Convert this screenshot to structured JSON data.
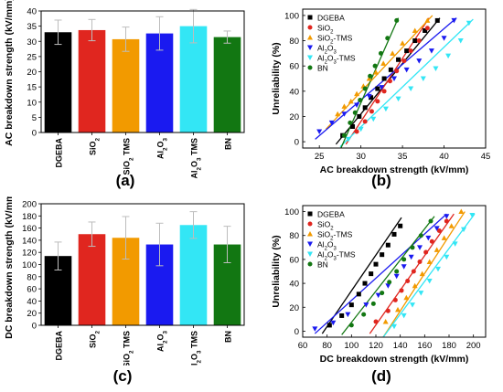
{
  "chart_data": [
    {
      "type": "bar",
      "panel": "(a)",
      "ylabel": "AC breakdown strength (kV/mm)",
      "ylim": [
        0,
        40
      ],
      "yticks": [
        0,
        5,
        10,
        15,
        20,
        25,
        30,
        35,
        40
      ],
      "categories": [
        "DGEBA",
        "SiO2",
        "SiO2 TMS",
        "Al2O3",
        "Al2O3 TMS",
        "BN"
      ],
      "category_labels": [
        {
          "parts": [
            [
              "DGEBA",
              ""
            ]
          ]
        },
        {
          "parts": [
            [
              "SiO",
              ""
            ],
            [
              "2",
              "sub"
            ]
          ]
        },
        {
          "parts": [
            [
              "SiO",
              ""
            ],
            [
              "2",
              "sub"
            ],
            [
              " TMS",
              ""
            ]
          ]
        },
        {
          "parts": [
            [
              "Al",
              ""
            ],
            [
              "2",
              "sub"
            ],
            [
              "O",
              ""
            ],
            [
              "3",
              "sub"
            ]
          ]
        },
        {
          "parts": [
            [
              "Al",
              ""
            ],
            [
              "2",
              "sub"
            ],
            [
              "O",
              ""
            ],
            [
              "3",
              "sub"
            ],
            [
              " TMS",
              ""
            ]
          ]
        },
        {
          "parts": [
            [
              "BN",
              ""
            ]
          ]
        }
      ],
      "values": [
        33.0,
        33.7,
        30.7,
        32.6,
        35.0,
        31.4
      ],
      "errors": [
        4.0,
        3.5,
        4.0,
        5.5,
        5.5,
        2.0
      ],
      "colors": [
        "#000000",
        "#e0261f",
        "#f29a00",
        "#1a1af0",
        "#33e6f5",
        "#127712"
      ]
    },
    {
      "type": "scatter",
      "panel": "(b)",
      "xlabel": "AC breakdown strength (kV/mm)",
      "ylabel": "Unreliability (%)",
      "xlim": [
        23,
        45
      ],
      "ylim": [
        -5,
        105
      ],
      "xticks": [
        25,
        30,
        35,
        40,
        45
      ],
      "yticks": [
        0,
        20,
        40,
        60,
        80,
        100
      ],
      "legend_position": "top-left",
      "series": [
        {
          "name": "DGEBA",
          "legend_parts": [
            [
              "DGEBA",
              ""
            ]
          ],
          "color": "#000000",
          "marker": "square",
          "x": [
            27.8,
            29.0,
            29.8,
            30.5,
            31.2,
            32.0,
            32.8,
            33.6,
            34.5,
            35.5,
            36.5,
            37.7,
            39.2
          ],
          "y": [
            5,
            12,
            20,
            27,
            35,
            42,
            50,
            57,
            65,
            72,
            80,
            88,
            96
          ],
          "fit": [
            [
              27.0,
              -2
            ],
            [
              39.5,
              98
            ]
          ]
        },
        {
          "name": "SiO2",
          "legend_parts": [
            [
              "SiO",
              ""
            ],
            [
              "2",
              "sub"
            ]
          ],
          "color": "#e0261f",
          "marker": "circle",
          "x": [
            29.5,
            30.5,
            31.3,
            32.0,
            32.8,
            33.5,
            34.3,
            35.2,
            36.0,
            37.0,
            38.0
          ],
          "y": [
            8,
            16,
            24,
            32,
            40,
            48,
            56,
            64,
            72,
            80,
            90
          ],
          "fit": [
            [
              28.2,
              -2
            ],
            [
              38.2,
              98
            ]
          ]
        },
        {
          "name": "SiO2-TMS",
          "legend_parts": [
            [
              "SiO",
              ""
            ],
            [
              "2",
              "sub"
            ],
            [
              "-TMS",
              ""
            ]
          ],
          "color": "#f29a00",
          "marker": "triangle",
          "x": [
            27.2,
            28.0,
            28.8,
            29.5,
            30.3,
            31.0,
            31.8,
            32.7,
            33.8,
            35.0,
            36.5,
            38.0
          ],
          "y": [
            22,
            28,
            32,
            38,
            44,
            50,
            55,
            62,
            70,
            78,
            88,
            96
          ],
          "fit": [
            [
              25.8,
              10
            ],
            [
              38.6,
              100
            ]
          ]
        },
        {
          "name": "Al2O3",
          "legend_parts": [
            [
              "Al",
              ""
            ],
            [
              "2",
              "sub"
            ],
            [
              "O",
              ""
            ],
            [
              "3",
              "sub"
            ]
          ],
          "color": "#1a1af0",
          "marker": "triangle-down",
          "x": [
            25.0,
            26.5,
            28.0,
            29.5,
            31.0,
            32.5,
            34.0,
            35.5,
            37.0,
            38.5,
            40.0,
            41.2
          ],
          "y": [
            8,
            15,
            22,
            29,
            36,
            43,
            50,
            57,
            64,
            72,
            82,
            96
          ],
          "fit": [
            [
              24.5,
              2
            ],
            [
              41.5,
              98
            ]
          ]
        },
        {
          "name": "Al2O3-TMS",
          "legend_parts": [
            [
              "Al",
              ""
            ],
            [
              "2",
              "sub"
            ],
            [
              "O",
              ""
            ],
            [
              "3",
              "sub"
            ],
            [
              "-TMS",
              ""
            ]
          ],
          "color": "#33e6f5",
          "marker": "triangle-down",
          "x": [
            28.5,
            30.0,
            31.5,
            33.0,
            34.5,
            36.0,
            37.5,
            39.0,
            40.5,
            42.0,
            43.0
          ],
          "y": [
            2,
            10,
            18,
            26,
            34,
            42,
            50,
            58,
            68,
            80,
            94
          ],
          "fit": [
            [
              27.5,
              -4
            ],
            [
              43.5,
              97
            ]
          ]
        },
        {
          "name": "BN",
          "legend_parts": [
            [
              "BN",
              ""
            ]
          ],
          "color": "#127712",
          "marker": "circle",
          "x": [
            28.0,
            28.7,
            29.3,
            29.9,
            30.5,
            31.1,
            31.7,
            32.4,
            33.2,
            34.3
          ],
          "y": [
            5,
            15,
            23,
            33,
            42,
            52,
            60,
            70,
            82,
            96
          ],
          "fit": [
            [
              27.6,
              -5
            ],
            [
              34.5,
              98
            ]
          ]
        }
      ]
    },
    {
      "type": "bar",
      "panel": "(c)",
      "ylabel": "DC breakdown strength (kV/mm)",
      "ylim": [
        0,
        200
      ],
      "yticks": [
        0,
        20,
        40,
        60,
        80,
        100,
        120,
        140,
        160,
        180,
        200
      ],
      "categories": [
        "DGEBA",
        "SiO2",
        "SiO2 TMS",
        "Al2O3",
        "Al2O3 TMS",
        "BN"
      ],
      "category_labels": [
        {
          "parts": [
            [
              "DGEBA",
              ""
            ]
          ]
        },
        {
          "parts": [
            [
              "SiO",
              ""
            ],
            [
              "2",
              "sub"
            ]
          ]
        },
        {
          "parts": [
            [
              "SiO",
              ""
            ],
            [
              "2",
              "sub"
            ],
            [
              " TMS",
              ""
            ]
          ]
        },
        {
          "parts": [
            [
              "Al",
              ""
            ],
            [
              "2",
              "sub"
            ],
            [
              "O",
              ""
            ],
            [
              "3",
              "sub"
            ]
          ]
        },
        {
          "parts": [
            [
              "Al",
              ""
            ],
            [
              "2",
              "sub"
            ],
            [
              "O",
              ""
            ],
            [
              "3",
              "sub"
            ],
            [
              " TMS",
              ""
            ]
          ]
        },
        {
          "parts": [
            [
              "BN",
              ""
            ]
          ]
        }
      ],
      "values": [
        114,
        150,
        144,
        133,
        165,
        133
      ],
      "errors": [
        23,
        20,
        35,
        35,
        22,
        30
      ],
      "colors": [
        "#000000",
        "#e0261f",
        "#f29a00",
        "#1a1af0",
        "#33e6f5",
        "#127712"
      ]
    },
    {
      "type": "scatter",
      "panel": "(d)",
      "xlabel": "DC breakdown strength (kV/mm)",
      "ylabel": "Unreliability (%)",
      "xlim": [
        60,
        210
      ],
      "ylim": [
        -5,
        105
      ],
      "xticks": [
        60,
        80,
        100,
        120,
        140,
        160,
        180,
        200
      ],
      "yticks": [
        0,
        20,
        40,
        60,
        80,
        100
      ],
      "legend_position": "top-left",
      "series": [
        {
          "name": "DGEBA",
          "legend_parts": [
            [
              "DGEBA",
              ""
            ]
          ],
          "color": "#000000",
          "marker": "square",
          "x": [
            82,
            92,
            100,
            106,
            111,
            116,
            120,
            125,
            130,
            135,
            140
          ],
          "y": [
            5,
            13,
            22,
            31,
            40,
            48,
            56,
            64,
            72,
            81,
            88
          ],
          "fit": [
            [
              76,
              -2
            ],
            [
              141,
              95
            ]
          ]
        },
        {
          "name": "SiO2",
          "legend_parts": [
            [
              "Si",
              ""
            ],
            [
              "O",
              ""
            ],
            [
              "2",
              "sub"
            ]
          ],
          "color": "#e0261f",
          "marker": "circle",
          "x": [
            120,
            130,
            136,
            141,
            146,
            151,
            156,
            161,
            166,
            172,
            178
          ],
          "y": [
            8,
            17,
            26,
            34,
            42,
            50,
            58,
            66,
            75,
            84,
            92
          ],
          "fit": [
            [
              115,
              -2
            ],
            [
              184,
              98
            ]
          ]
        },
        {
          "name": "SiO2-TMS",
          "legend_parts": [
            [
              "SiO",
              ""
            ],
            [
              "2",
              "sub"
            ],
            [
              "-TMS",
              ""
            ]
          ],
          "color": "#f29a00",
          "marker": "triangle",
          "x": [
            128,
            138,
            145,
            152,
            158,
            164,
            170,
            176,
            182,
            190
          ],
          "y": [
            8,
            18,
            28,
            38,
            48,
            58,
            68,
            78,
            88,
            100
          ],
          "fit": [
            [
              126,
              -5
            ],
            [
              193,
              100
            ]
          ]
        },
        {
          "name": "Al2O3",
          "legend_parts": [
            [
              "Al",
              ""
            ],
            [
              "2",
              "sub"
            ],
            [
              "O",
              ""
            ],
            [
              "3",
              "sub"
            ]
          ],
          "color": "#1a1af0",
          "marker": "triangle-down",
          "x": [
            70,
            85,
            97,
            112,
            122,
            130,
            137,
            143,
            149,
            156,
            163,
            170,
            178
          ],
          "y": [
            2,
            7,
            14,
            22,
            30,
            38,
            46,
            54,
            62,
            70,
            78,
            86,
            96
          ],
          "fit": [
            [
              70,
              -2
            ],
            [
              178,
              98
            ]
          ]
        },
        {
          "name": "Al2O3-TMS",
          "legend_parts": [
            [
              "Al",
              ""
            ],
            [
              "2",
              "sub"
            ],
            [
              "O",
              ""
            ],
            [
              "3",
              "sub"
            ],
            [
              "-TMS",
              ""
            ]
          ],
          "color": "#33e6f5",
          "marker": "triangle-down",
          "x": [
            135,
            143,
            150,
            157,
            164,
            171,
            178,
            185,
            192,
            199
          ],
          "y": [
            4,
            13,
            22,
            32,
            42,
            52,
            62,
            73,
            85,
            97
          ],
          "fit": [
            [
              126,
              -5
            ],
            [
              201,
              98
            ]
          ]
        },
        {
          "name": "BN",
          "legend_parts": [
            [
              "BN",
              ""
            ]
          ],
          "color": "#127712",
          "marker": "circle",
          "x": [
            100,
            110,
            118,
            125,
            131,
            137,
            143,
            150,
            157,
            165
          ],
          "y": [
            5,
            14,
            23,
            32,
            41,
            50,
            60,
            70,
            80,
            92
          ],
          "fit": [
            [
              92,
              -3
            ],
            [
              168,
              96
            ]
          ]
        }
      ]
    }
  ]
}
